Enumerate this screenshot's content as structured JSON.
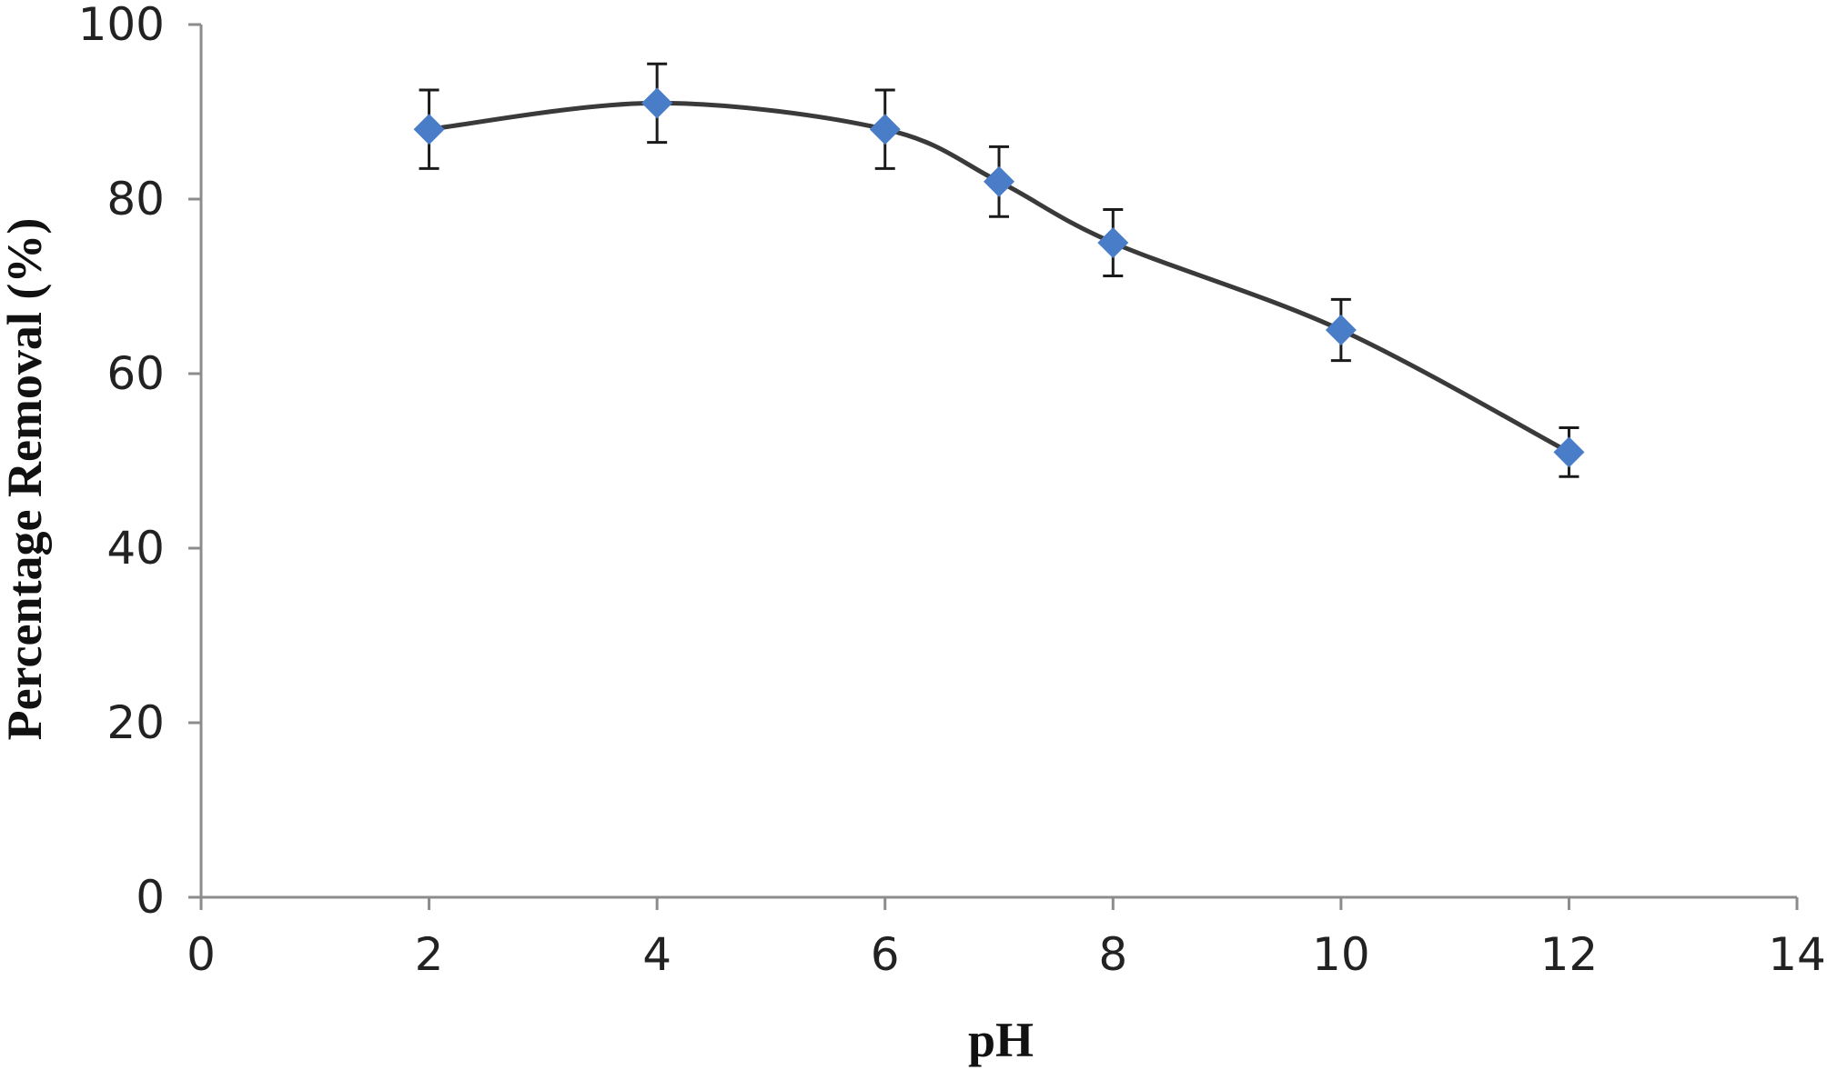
{
  "chart_data": {
    "type": "scatter",
    "title": "",
    "xlabel": "pH",
    "ylabel": "Percentage Removal (%)",
    "xlim": [
      0,
      14
    ],
    "ylim": [
      0,
      100
    ],
    "x_ticks": [
      0,
      2,
      4,
      6,
      8,
      10,
      12,
      14
    ],
    "y_ticks": [
      0,
      20,
      40,
      60,
      80,
      100
    ],
    "grid": false,
    "legend": "none",
    "line_style": "smoothed",
    "colors": {
      "marker": "#4a7dc8",
      "line": "#3a3a3a",
      "error_bar": "#1a1a1a",
      "axis": "#8c8c8c"
    },
    "series": [
      {
        "marker": "diamond",
        "x": [
          2,
          4,
          6,
          7,
          8,
          10,
          12
        ],
        "y": [
          88,
          91,
          88,
          82,
          75,
          65,
          51
        ],
        "error": [
          4.5,
          4.5,
          4.5,
          4,
          3.8,
          3.5,
          2.8
        ]
      }
    ]
  }
}
